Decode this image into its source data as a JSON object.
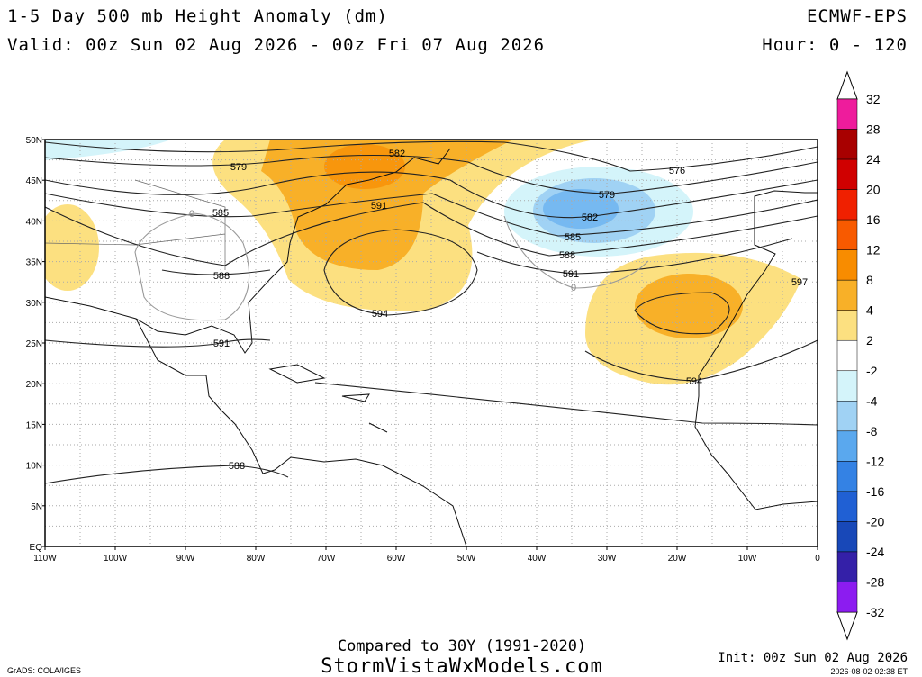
{
  "header": {
    "title": "1-5 Day 500 mb Height Anomaly (dm)",
    "valid": "Valid: 00z Sun 02 Aug 2026 - 00z Fri 07 Aug 2026",
    "model": "ECMWF-EPS",
    "hour": "Hour: 0 - 120"
  },
  "legend": {
    "values": [
      32,
      28,
      24,
      20,
      16,
      12,
      8,
      4,
      2,
      -2,
      -4,
      -8,
      -12,
      -16,
      -20,
      -24,
      -28,
      -32
    ],
    "colors": [
      "#ee1c9c",
      "#a80000",
      "#d00000",
      "#f02000",
      "#f85a00",
      "#f88c00",
      "#f8b028",
      "#fce080",
      "#ffffff",
      "#d4f4fa",
      "#a0d2f4",
      "#5aa8ee",
      "#3482e4",
      "#2060d4",
      "#1848b8",
      "#3420a8",
      "#8c1cf0"
    ]
  },
  "map": {
    "lat_labels": [
      "50N",
      "45N",
      "40N",
      "35N",
      "30N",
      "25N",
      "20N",
      "15N",
      "10N",
      "5N",
      "EQ"
    ],
    "lon_labels": [
      "110W",
      "100W",
      "90W",
      "80W",
      "70W",
      "60W",
      "50W",
      "40W",
      "30W",
      "20W",
      "10W",
      "0"
    ],
    "contour_labels": [
      "579",
      "582",
      "576",
      "579",
      "585",
      "591",
      "582",
      "585",
      "588",
      "588",
      "591",
      "0",
      "597",
      "594",
      "591",
      "594",
      "588",
      "0"
    ]
  },
  "footer": {
    "compared": "Compared to 30Y (1991-2020)",
    "site": "StormVistaWxModels.com",
    "grads": "GrADS: COLA/IGES",
    "init": "Init: 00z Sun 02 Aug 2026",
    "stamp": "2026-08-02-02:38 ET"
  }
}
